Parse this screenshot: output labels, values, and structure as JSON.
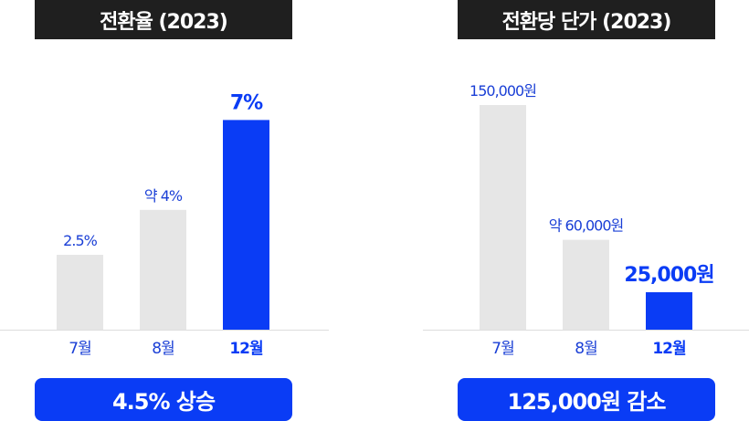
{
  "colors": {
    "bar": "#e6e6e6",
    "highlight": "#0a3cf5",
    "title_bg": "#1f1f1f",
    "axis": "#dddddd"
  },
  "chart_data": [
    {
      "type": "bar",
      "title": "전환율 (2023)",
      "categories": [
        "7월",
        "8월",
        "12월"
      ],
      "values": [
        2.5,
        4,
        7
      ],
      "value_labels": [
        "2.5%",
        "약 4%",
        "7%"
      ],
      "highlight_index": 2,
      "ylim": [
        0,
        7.5
      ],
      "grid": false,
      "summary": "4.5% 상승"
    },
    {
      "type": "bar",
      "title": "전환당 단가 (2023)",
      "categories": [
        "7월",
        "8월",
        "12월"
      ],
      "values": [
        150000,
        60000,
        25000
      ],
      "value_labels": [
        "150,000원",
        "약 60,000원",
        "25,000원"
      ],
      "highlight_index": 2,
      "ylim": [
        0,
        150000
      ],
      "grid": false,
      "summary": "125,000원 감소"
    }
  ]
}
